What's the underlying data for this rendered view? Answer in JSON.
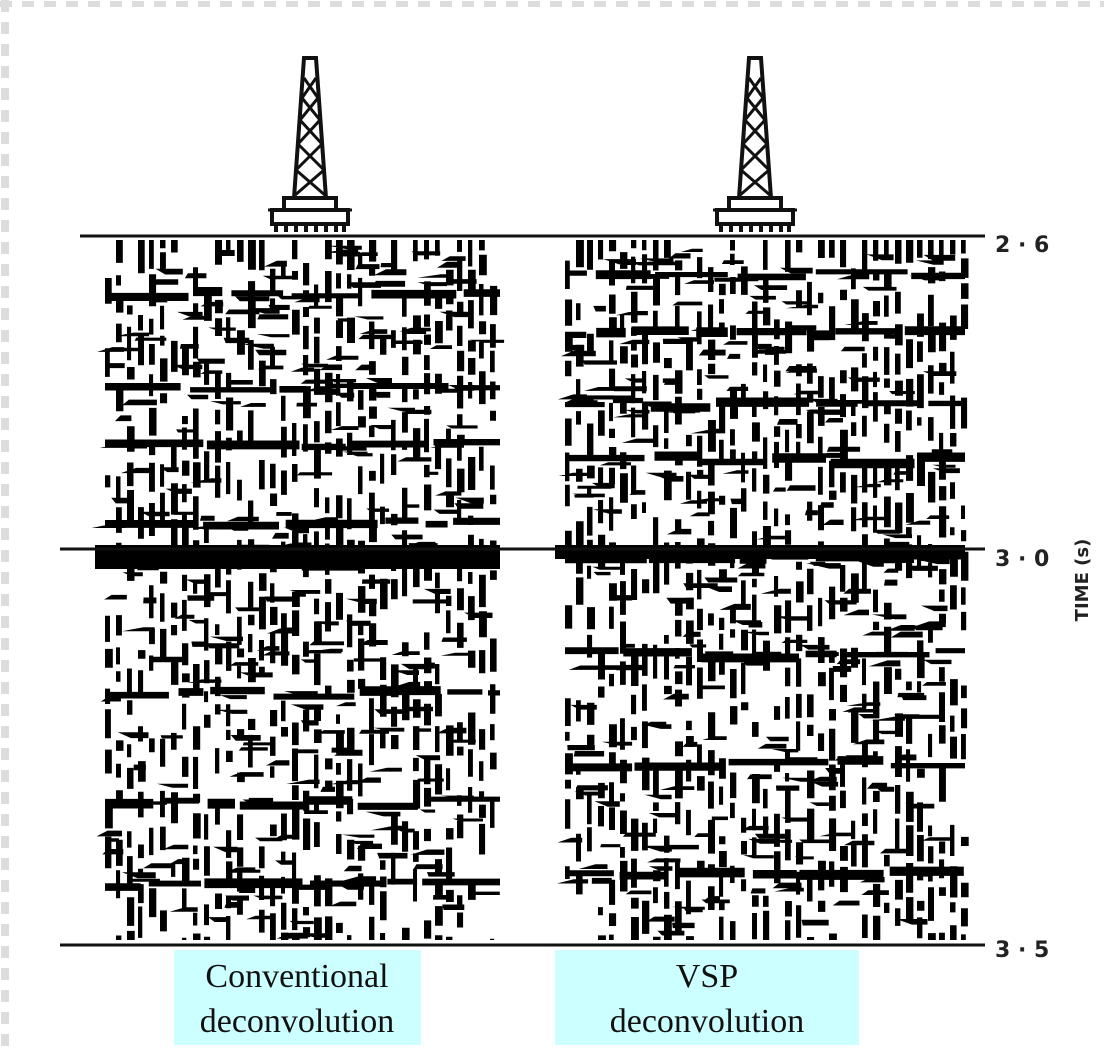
{
  "axis": {
    "label": "TIME (s)",
    "ticks": [
      "2 · 6",
      "3 · 0",
      "3 · 5"
    ]
  },
  "panels": [
    {
      "caption": [
        "Conventional",
        "deconvolution"
      ]
    },
    {
      "caption": [
        "VSP",
        "deconvolution"
      ]
    }
  ]
}
